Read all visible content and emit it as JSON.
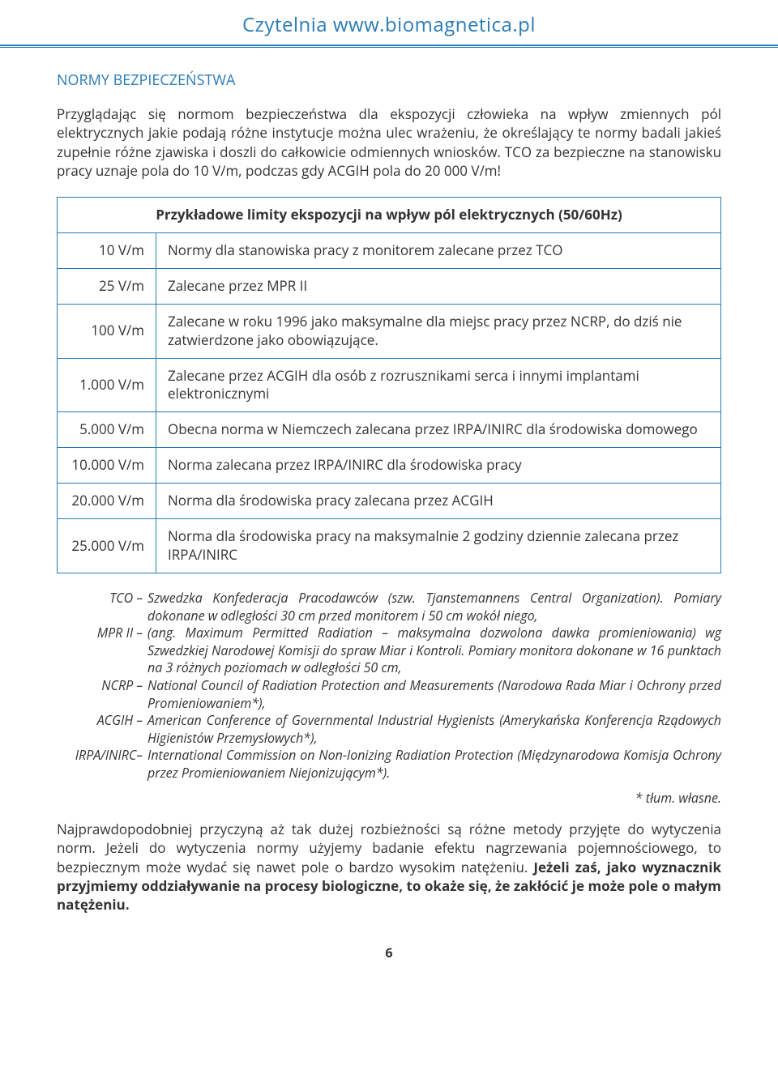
{
  "header": {
    "site_title": "Czytelnia www.biomagnetica.pl"
  },
  "section": {
    "heading": "NORMY BEZPIECZEŃSTWA",
    "intro": "Przyglądając się normom bezpieczeństwa dla ekspozycji człowieka na wpływ zmiennych pól elektrycznych jakie podają różne instytucje można ulec wrażeniu, że określający te normy badali jakieś zupełnie różne zjawiska i doszli do całkowicie odmiennych wniosków. TCO za bezpieczne na stanowisku pracy uznaje pola do 10 V/m, podczas gdy ACGIH pola do 20 000 V/m!"
  },
  "table": {
    "caption": "Przykładowe limity ekspozycji na wpływ pól elektrycznych (50/60Hz)",
    "rows": [
      {
        "limit": "10 V/m",
        "desc": "Normy dla stanowiska pracy z monitorem zalecane przez TCO"
      },
      {
        "limit": "25 V/m",
        "desc": "Zalecane przez MPR II"
      },
      {
        "limit": "100 V/m",
        "desc": "Zalecane w roku 1996 jako maksymalne dla miejsc pracy przez NCRP, do dziś nie zatwierdzone jako obowiązujące."
      },
      {
        "limit": "1.000 V/m",
        "desc": "Zalecane przez ACGIH dla osób z rozrusznikami serca i innymi implantami elektronicznymi"
      },
      {
        "limit": "5.000 V/m",
        "desc": "Obecna norma w Niemczech zalecana przez  IRPA/INIRC dla środowiska domowego"
      },
      {
        "limit": "10.000 V/m",
        "desc": "Norma zalecana przez  IRPA/INIRC dla środowiska pracy"
      },
      {
        "limit": "20.000 V/m",
        "desc": "Norma dla środowiska pracy zalecana przez ACGIH"
      },
      {
        "limit": "25.000 V/m",
        "desc": "Norma dla środowiska pracy na maksymalnie 2 godziny dziennie zalecana przez IRPA/INIRC"
      }
    ]
  },
  "defs": [
    {
      "term": "TCO –",
      "desc": "Szwedzka Konfederacja Pracodawców (szw. Tjanstemannens Central Organization). Pomiary dokonane w odległości 30 cm przed monitorem i 50 cm wokół niego,"
    },
    {
      "term": "MPR II –",
      "desc": "(ang. Maximum Permitted Radiation – maksymalna dozwolona dawka promieniowania) wg Szwedzkiej Narodowej Komisji do spraw Miar i Kontroli. Pomiary monitora dokonane w 16 punktach na 3 różnych poziomach w odległości 50 cm,"
    },
    {
      "term": "NCRP –",
      "desc": "National Council of Radiation Protection and Measurements (Narodowa Rada Miar i Ochrony przed Promieniowaniem*),"
    },
    {
      "term": "ACGIH –",
      "desc": "American Conference of Governmental Industrial Hygienists (Amerykańska Konferencja Rządowych Higienistów Przemysłowych*),"
    },
    {
      "term": "IRPA/INIRC–",
      "desc": "International Commission on Non-Ionizing Radiation Protection (Międzynarodowa Komisja Ochrony przez Promieniowaniem Niejonizującym*)."
    }
  ],
  "footnote": "* tłum. własne.",
  "closing": {
    "plain": "Najprawdopodobniej przyczyną aż tak dużej rozbieżności są różne metody przyjęte do wytyczenia norm. Jeżeli do wytyczenia normy użyjemy badanie efektu nagrzewania pojemnościowego, to bezpiecznym może wydać się nawet pole o bardzo wysokim natężeniu. ",
    "bold": "Jeżeli zaś, jako wyznacznik przyjmiemy oddziaływanie na procesy biologiczne, to okaże się, że zakłócić je może pole o małym natężeniu."
  },
  "page_number": "6",
  "colors": {
    "accent": "#2a7bb5",
    "text": "#333333",
    "background": "#ffffff"
  }
}
